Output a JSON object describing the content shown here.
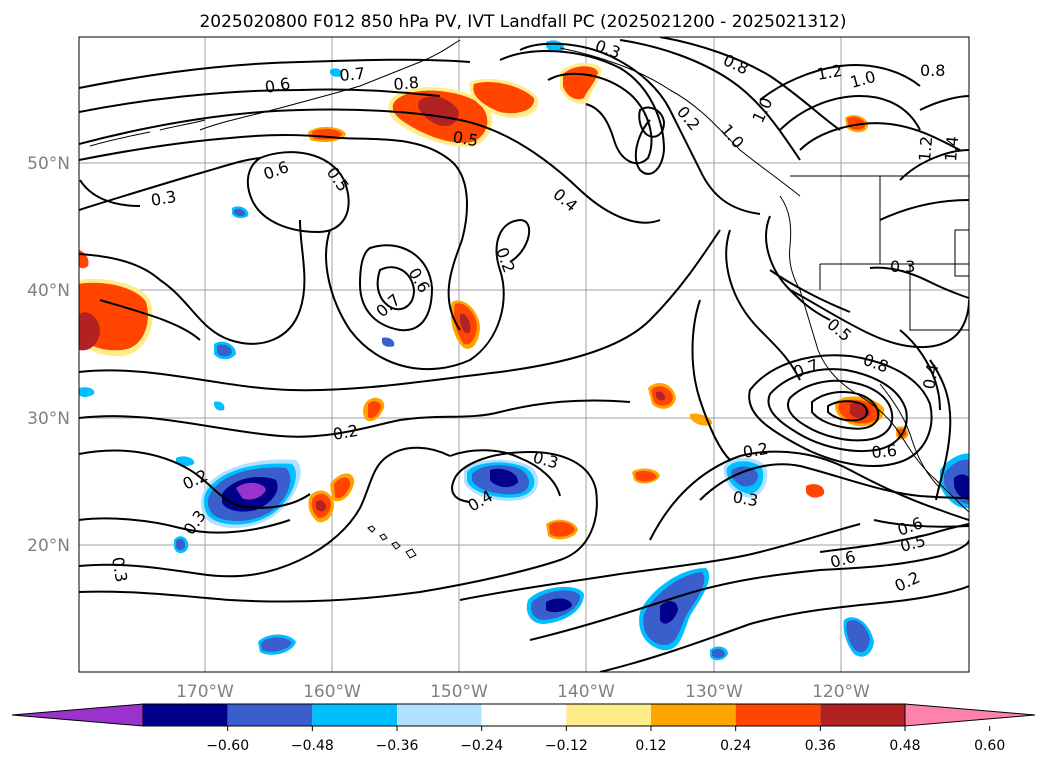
{
  "title": "2025020800 F012 850 hPa PV, IVT Landfall PC (2025021200 - 2025021312)",
  "axes": {
    "lon_labels": [
      "170°W",
      "160°W",
      "150°W",
      "140°W",
      "130°W",
      "120°W"
    ],
    "lat_labels": [
      "50°N",
      "40°N",
      "30°N",
      "20°N"
    ]
  },
  "colorbar": {
    "ticks": [
      "−0.60",
      "−0.48",
      "−0.36",
      "−0.24",
      "−0.12",
      "0.12",
      "0.24",
      "0.36",
      "0.48",
      "0.60"
    ],
    "colors": [
      "#9a32cd",
      "#00008b",
      "#3a5fcd",
      "#00bfff",
      "#b0e2ff",
      "#ffffff",
      "#ffec8b",
      "#ffa500",
      "#ff4500",
      "#b22222",
      "#ff82ab"
    ]
  },
  "contour_labels": [
    "0.6",
    "0.7",
    "0.8",
    "0.5",
    "0.4",
    "0.6",
    "0.5",
    "0.3",
    "0.6",
    "0.7",
    "0.2",
    "0.2",
    "0.3",
    "0.2",
    "0.3",
    "0.4",
    "0.3",
    "0.2",
    "0.3",
    "0.5",
    "0.7",
    "0.8",
    "0.6",
    "0.6",
    "0.5",
    "0.6",
    "0.2",
    "0.4",
    "0.3",
    "0.8",
    "1.2",
    "1.0",
    "1.0",
    "0.8",
    "1.2",
    "1.4",
    "1.0",
    "0.2",
    "0.3"
  ]
}
